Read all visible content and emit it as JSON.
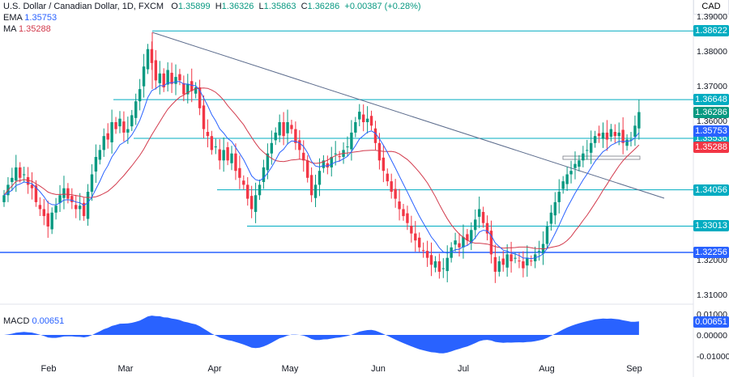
{
  "header": {
    "symbol": "U.S. Dollar / Canadian Dollar, 1D, FXCM",
    "o_label": "O",
    "o": "1.35899",
    "h_label": "H",
    "h": "1.36326",
    "l_label": "L",
    "l": "1.35863",
    "c_label": "C",
    "c": "1.36286",
    "change": "+0.00387 (+0.28%)"
  },
  "ema": {
    "label": "EMA",
    "value": "1.35753"
  },
  "ma": {
    "label": "MA",
    "value": "1.35288"
  },
  "macd": {
    "label": "MACD",
    "value": "0.00651",
    "ticks": [
      "0.01000",
      "0.00000",
      "-0.01000"
    ]
  },
  "axis": {
    "currency": "CAD",
    "ticks": [
      "1.39000",
      "1.38000",
      "1.37000",
      "1.36000",
      "1.32000",
      "1.31000"
    ],
    "ticks_val": [
      1.39,
      1.38,
      1.37,
      1.36,
      1.32,
      1.31
    ]
  },
  "levels": [
    {
      "value": "1.38622",
      "v": 1.38622,
      "color": "#00acc1"
    },
    {
      "value": "1.36648",
      "v": 1.36648,
      "color": "#00acc1"
    },
    {
      "value": "1.35536",
      "v": 1.35536,
      "color": "#00acc1"
    },
    {
      "value": "1.34056",
      "v": 1.34056,
      "color": "#00acc1"
    },
    {
      "value": "1.33013",
      "v": 1.33013,
      "color": "#00acc1"
    },
    {
      "value": "1.32256",
      "v": 1.32256,
      "color": "#2962ff"
    }
  ],
  "price_tags": [
    {
      "value": "1.36286",
      "v": 1.36286,
      "color": "#089981"
    },
    {
      "value": "1.35753",
      "v": 1.35753,
      "color": "#2962ff"
    },
    {
      "value": "1.35288",
      "v": 1.35288,
      "color": "#f23645"
    }
  ],
  "months": [
    "Feb",
    "Mar",
    "Apr",
    "May",
    "Jun",
    "Jul",
    "Aug",
    "Sep"
  ],
  "colors": {
    "up": "#089981",
    "down": "#f23645",
    "ema": "#2962ff",
    "ma": "#d23a4c",
    "level": "#00acc1",
    "trend": "#5b6b8c",
    "macd": "#2962ff"
  },
  "closes": [
    1.339,
    1.342,
    1.344,
    1.347,
    1.344,
    1.345,
    1.342,
    1.341,
    1.337,
    1.335,
    1.333,
    1.33,
    1.334,
    1.336,
    1.339,
    1.341,
    1.338,
    1.337,
    1.335,
    1.336,
    1.333,
    1.34,
    1.345,
    1.35,
    1.352,
    1.356,
    1.355,
    1.36,
    1.358,
    1.361,
    1.357,
    1.358,
    1.362,
    1.366,
    1.3695,
    1.376,
    1.381,
    1.377,
    1.372,
    1.374,
    1.37,
    1.375,
    1.371,
    1.373,
    1.372,
    1.368,
    1.371,
    1.369,
    1.37,
    1.364,
    1.358,
    1.356,
    1.352,
    1.353,
    1.349,
    1.352,
    1.349,
    1.351,
    1.346,
    1.344,
    1.342,
    1.338,
    1.335,
    1.339,
    1.342,
    1.347,
    1.351,
    1.354,
    1.357,
    1.36,
    1.356,
    1.36,
    1.358,
    1.354,
    1.352,
    1.349,
    1.344,
    1.339,
    1.342,
    1.346,
    1.349,
    1.347,
    1.35,
    1.351,
    1.35,
    1.352,
    1.353,
    1.357,
    1.36,
    1.363,
    1.36,
    1.361,
    1.359,
    1.354,
    1.349,
    1.346,
    1.343,
    1.34,
    1.338,
    1.335,
    1.333,
    1.331,
    1.328,
    1.326,
    1.324,
    1.323,
    1.321,
    1.319,
    1.32,
    1.317,
    1.318,
    1.321,
    1.324,
    1.326,
    1.324,
    1.327,
    1.326,
    1.329,
    1.332,
    1.335,
    1.331,
    1.328,
    1.322,
    1.317,
    1.32,
    1.319,
    1.322,
    1.32,
    1.321,
    1.32,
    1.318,
    1.321,
    1.32,
    1.322,
    1.323,
    1.325,
    1.33,
    1.334,
    1.337,
    1.34,
    1.343,
    1.345,
    1.346,
    1.348,
    1.349,
    1.351,
    1.352,
    1.354,
    1.356,
    1.356,
    1.357,
    1.355,
    1.358,
    1.356,
    1.357,
    1.354,
    1.355,
    1.355,
    1.359,
    1.3629
  ]
}
